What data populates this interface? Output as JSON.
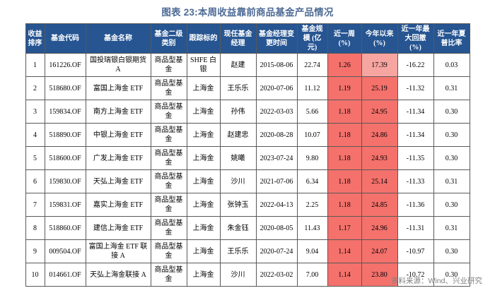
{
  "title": "图表 23:本周收益靠前商品基金产品情况",
  "source": "资料来源：Wind、兴业研究",
  "colors": {
    "header_bg": "#265592",
    "title_text": "#4e6b96",
    "highlight_strong": "#f4716c",
    "highlight_light": "#f7a5a1",
    "source_text": "#7f7f7f"
  },
  "table": {
    "columns": [
      {
        "key": "rank",
        "label": "收益排序"
      },
      {
        "key": "code",
        "label": "基金代码"
      },
      {
        "key": "name",
        "label": "基金名称"
      },
      {
        "key": "category",
        "label": "基金二级类别"
      },
      {
        "key": "tracking",
        "label": "跟踪标的"
      },
      {
        "key": "manager",
        "label": "现任基金经理"
      },
      {
        "key": "change_date",
        "label": "基金经理变更时间"
      },
      {
        "key": "size",
        "label": "基金规模 (亿元)"
      },
      {
        "key": "week",
        "label": "近一周 (%)"
      },
      {
        "key": "ytd",
        "label": "今年以来 (%)"
      },
      {
        "key": "drawdown",
        "label": "近一年最大回撤 (%)"
      },
      {
        "key": "sharpe",
        "label": "近一年夏普比率"
      }
    ],
    "rows": [
      {
        "rank": "1",
        "code": "161226.OF",
        "name": "国投瑞银白银期货 A",
        "category": "商品型基金",
        "tracking": "SHFE 白银",
        "manager": "赵建",
        "change_date": "2015-08-06",
        "size": "22.74",
        "week": "1.26",
        "ytd": "17.39",
        "drawdown": "-16.22",
        "sharpe": "0.03",
        "week_bg": "#f4716c",
        "ytd_bg": "#f7a5a1"
      },
      {
        "rank": "2",
        "code": "518680.OF",
        "name": "富国上海金 ETF",
        "category": "商品型基金",
        "tracking": "上海金",
        "manager": "王乐乐",
        "change_date": "2020-07-06",
        "size": "11.12",
        "week": "1.19",
        "ytd": "25.19",
        "drawdown": "-11.32",
        "sharpe": "0.31",
        "week_bg": "#f4716c",
        "ytd_bg": "#f4716c"
      },
      {
        "rank": "3",
        "code": "159834.OF",
        "name": "南方上海金 ETF",
        "category": "商品型基金",
        "tracking": "上海金",
        "manager": "孙伟",
        "change_date": "2022-03-03",
        "size": "5.66",
        "week": "1.18",
        "ytd": "24.95",
        "drawdown": "-11.34",
        "sharpe": "0.30",
        "week_bg": "#f4716c",
        "ytd_bg": "#f4716c"
      },
      {
        "rank": "4",
        "code": "518890.OF",
        "name": "中银上海金 ETF",
        "category": "商品型基金",
        "tracking": "上海金",
        "manager": "赵建忠",
        "change_date": "2020-08-28",
        "size": "10.07",
        "week": "1.18",
        "ytd": "24.86",
        "drawdown": "-11.34",
        "sharpe": "0.30",
        "week_bg": "#f4716c",
        "ytd_bg": "#f4716c"
      },
      {
        "rank": "5",
        "code": "518600.OF",
        "name": "广发上海金 ETF",
        "category": "商品型基金",
        "tracking": "上海金",
        "manager": "姚曦",
        "change_date": "2023-07-24",
        "size": "9.80",
        "week": "1.18",
        "ytd": "24.93",
        "drawdown": "-11.35",
        "sharpe": "0.30",
        "week_bg": "#f4716c",
        "ytd_bg": "#f4716c"
      },
      {
        "rank": "6",
        "code": "159830.OF",
        "name": "天弘上海金 ETF",
        "category": "商品型基金",
        "tracking": "上海金",
        "manager": "沙川",
        "change_date": "2021-07-06",
        "size": "6.34",
        "week": "1.18",
        "ytd": "25.14",
        "drawdown": "-11.33",
        "sharpe": "0.31",
        "week_bg": "#f4716c",
        "ytd_bg": "#f4716c"
      },
      {
        "rank": "7",
        "code": "159831.OF",
        "name": "嘉实上海金 ETF",
        "category": "商品型基金",
        "tracking": "上海金",
        "manager": "张钟玉",
        "change_date": "2022-04-13",
        "size": "2.25",
        "week": "1.18",
        "ytd": "24.85",
        "drawdown": "-11.36",
        "sharpe": "0.30",
        "week_bg": "#f4716c",
        "ytd_bg": "#f4716c"
      },
      {
        "rank": "8",
        "code": "518860.OF",
        "name": "建信上海金 ETF",
        "category": "商品型基金",
        "tracking": "上海金",
        "manager": "朱金钰",
        "change_date": "2020-08-05",
        "size": "11.43",
        "week": "1.17",
        "ytd": "24.96",
        "drawdown": "-11.31",
        "sharpe": "0.31",
        "week_bg": "#f4716c",
        "ytd_bg": "#f4716c"
      },
      {
        "rank": "9",
        "code": "009504.OF",
        "name": "富国上海金 ETF 联接 A",
        "category": "商品型基金",
        "tracking": "上海金",
        "manager": "王乐乐",
        "change_date": "2020-07-24",
        "size": "9.04",
        "week": "1.14",
        "ytd": "24.07",
        "drawdown": "-10.97",
        "sharpe": "0.30",
        "week_bg": "#f4716c",
        "ytd_bg": "#f4716c"
      },
      {
        "rank": "10",
        "code": "014661.OF",
        "name": "天弘上海金联接 A",
        "category": "商品型基金",
        "tracking": "上海金",
        "manager": "沙川",
        "change_date": "2022-03-02",
        "size": "7.00",
        "week": "1.14",
        "ytd": "23.80",
        "drawdown": "-10.72",
        "sharpe": "0.30",
        "week_bg": "#f4716c",
        "ytd_bg": "#f4716c"
      }
    ]
  }
}
